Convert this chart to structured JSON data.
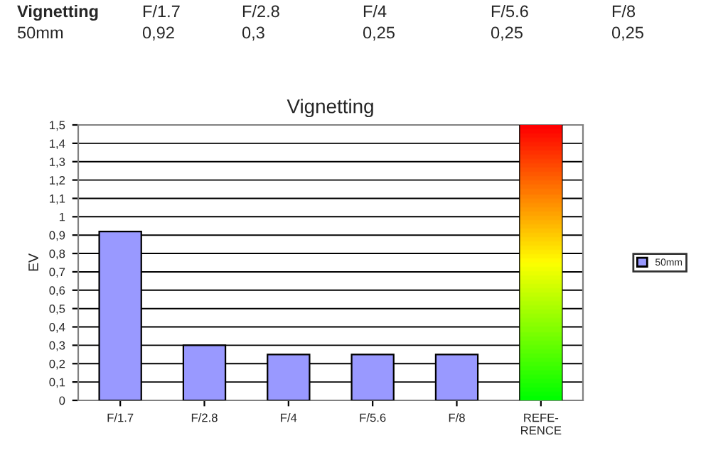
{
  "chart_data": {
    "type": "bar",
    "title": "Vignetting",
    "ylabel": "EV",
    "categories": [
      "F/1.7",
      "F/2.8",
      "F/4",
      "F/5.6",
      "F/8",
      "REFE-\nRENCE"
    ],
    "series": [
      {
        "name": "50mm",
        "color": "#9999ff",
        "values": [
          0.92,
          0.3,
          0.25,
          0.25,
          0.25,
          null
        ]
      },
      {
        "color": "#ff0000",
        "values": [
          null,
          null,
          null,
          null,
          null,
          1.5
        ]
      }
    ],
    "annotations": [
      "Vignetting",
      "0,92",
      "0,3",
      "0,25",
      "0,25",
      "0,25"
    ],
    "ylim": [
      0,
      1.5
    ],
    "yticks": [
      {
        "value": 0,
        "label": "0"
      },
      {
        "value": 0.1,
        "label": "0,1"
      },
      {
        "value": 0.2,
        "label": "0,2"
      },
      {
        "value": 0.3,
        "label": "0,3"
      },
      {
        "value": 0.4,
        "label": "0,4"
      },
      {
        "value": 0.5,
        "label": "0,5"
      },
      {
        "value": 0.6,
        "label": "0,6"
      },
      {
        "value": 0.7,
        "label": "0,7"
      },
      {
        "value": 0.8,
        "label": "0,8"
      },
      {
        "value": 0.9,
        "label": "0,9"
      },
      {
        "value": 1,
        "label": "1"
      },
      {
        "value": 1.1,
        "label": "1,1"
      },
      {
        "value": 1.2,
        "label": "1,2"
      },
      {
        "value": 1.3,
        "label": "1,3"
      },
      {
        "value": 1.4,
        "label": "1,4"
      },
      {
        "value": 1.5,
        "label": "1,5"
      }
    ],
    "grid": "y",
    "legend": "right"
  }
}
